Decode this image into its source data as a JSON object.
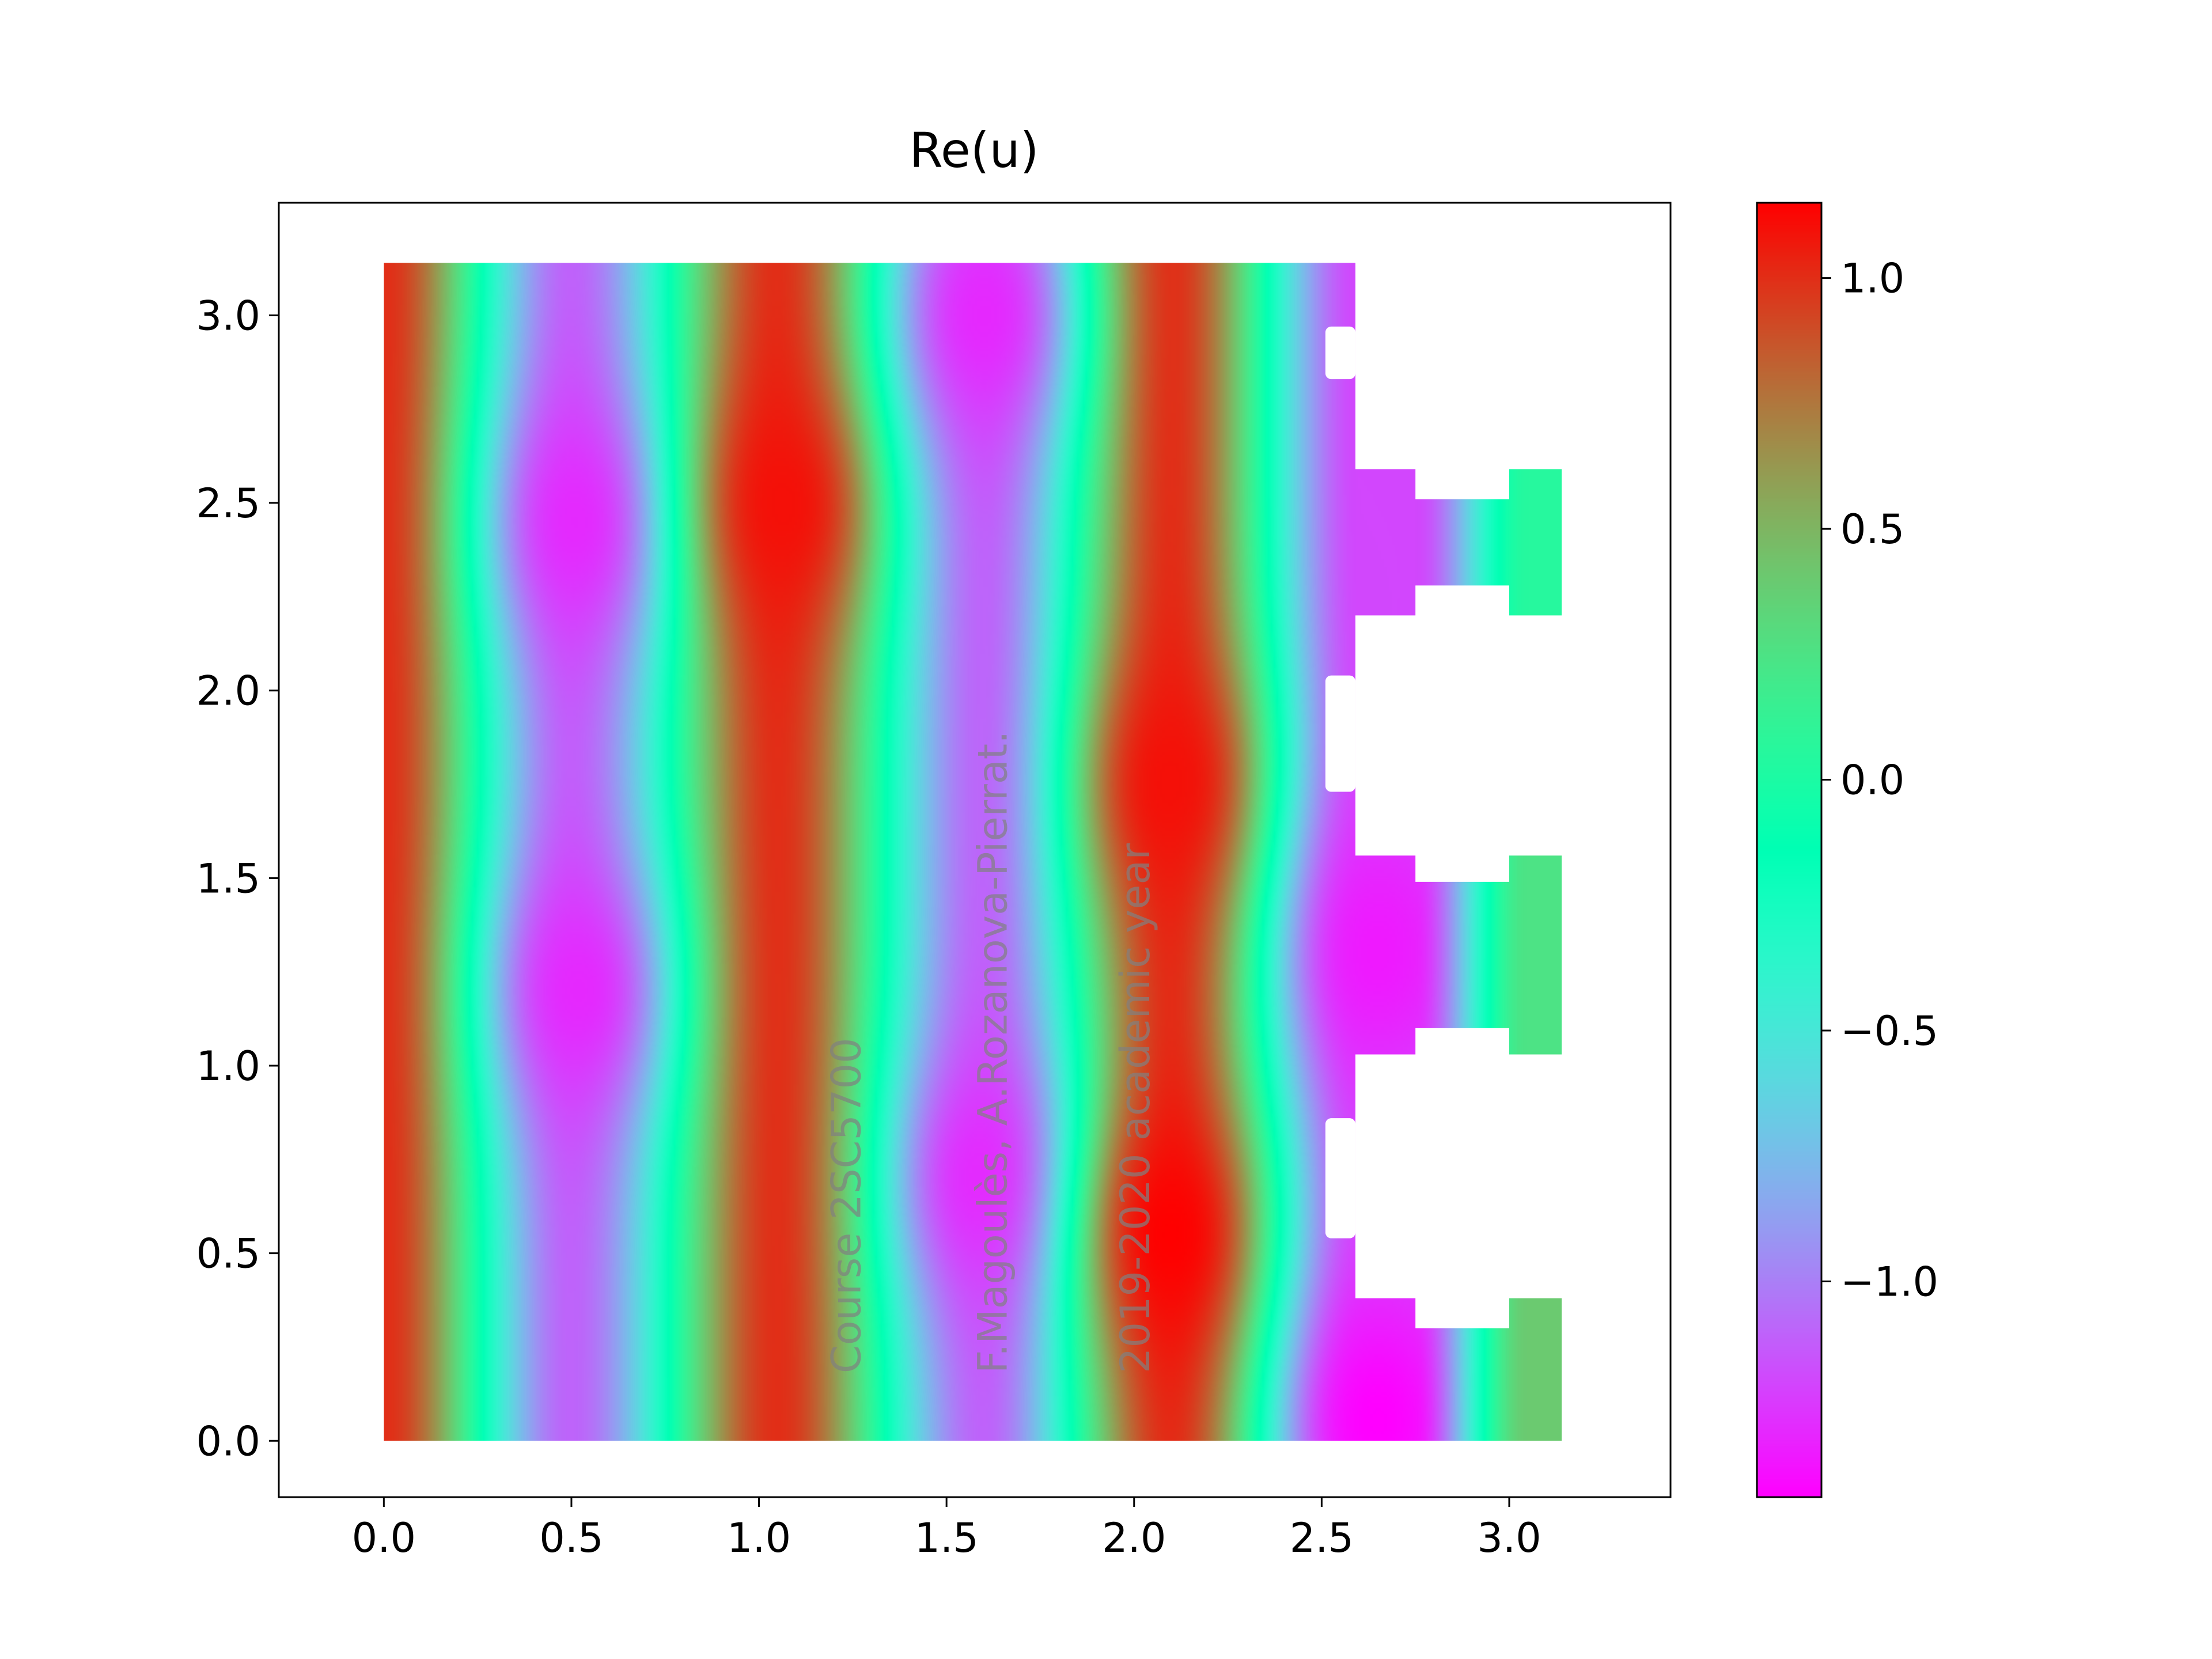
{
  "chart_data": {
    "type": "heatmap",
    "title": "Re(u)",
    "xlabel": "",
    "ylabel": "",
    "xlim": [
      -0.28,
      3.43
    ],
    "ylim": [
      -0.15,
      3.3
    ],
    "xticks": [
      "0.0",
      "0.5",
      "1.0",
      "1.5",
      "2.0",
      "2.5",
      "3.0"
    ],
    "yticks": [
      "0.0",
      "0.5",
      "1.0",
      "1.5",
      "2.0",
      "2.5",
      "3.0"
    ],
    "colormap": "rainbow",
    "colorbar": {
      "min": -1.43,
      "max": 1.15,
      "ticks": [
        "−1.0",
        "−0.5",
        "0.0",
        "0.5",
        "1.0"
      ],
      "tick_values": [
        -1.0,
        -0.5,
        0.0,
        0.5,
        1.0
      ]
    },
    "domain": {
      "main_rect": {
        "x": [
          0,
          2.59
        ],
        "y": [
          0,
          3.14
        ]
      },
      "slots": [
        {
          "x": [
            2.51,
            2.59
          ],
          "y": [
            2.83,
            2.97
          ]
        },
        {
          "x": [
            2.51,
            2.59
          ],
          "y": [
            1.73,
            2.04
          ]
        },
        {
          "x": [
            2.51,
            2.59
          ],
          "y": [
            0.54,
            0.86
          ]
        }
      ],
      "connectors": [
        {
          "x": [
            2.59,
            2.75
          ],
          "y": [
            2.2,
            2.59
          ]
        },
        {
          "x": [
            2.59,
            2.75
          ],
          "y": [
            1.03,
            1.56
          ]
        },
        {
          "x": [
            2.59,
            2.75
          ],
          "y": [
            0,
            0.38
          ]
        }
      ],
      "necks": [
        {
          "x": [
            2.75,
            3.0
          ],
          "y": [
            2.28,
            2.51
          ]
        },
        {
          "x": [
            2.75,
            3.0
          ],
          "y": [
            1.1,
            1.49
          ]
        },
        {
          "x": [
            2.75,
            3.0
          ],
          "y": [
            0,
            0.3
          ]
        }
      ],
      "end_caps": [
        {
          "x": [
            3.0,
            3.14
          ],
          "y": [
            2.2,
            2.59
          ]
        },
        {
          "x": [
            3.0,
            3.14
          ],
          "y": [
            1.03,
            1.56
          ]
        },
        {
          "x": [
            3.0,
            3.14
          ],
          "y": [
            0,
            0.38
          ]
        }
      ]
    },
    "field_summary": {
      "columns": [
        {
          "x": 0.0,
          "value": 1.0
        },
        {
          "x": 0.5,
          "value": -1.1
        },
        {
          "x": 1.05,
          "value": 1.0
        },
        {
          "x": 1.6,
          "value": -1.1
        },
        {
          "x": 2.1,
          "value": 1.0
        }
      ],
      "hotspots": [
        {
          "x": 0.52,
          "y": 2.45,
          "value": -1.3
        },
        {
          "x": 0.52,
          "y": 1.2,
          "value": -1.3
        },
        {
          "x": 1.07,
          "y": 2.5,
          "value": 1.1
        },
        {
          "x": 1.6,
          "y": 0.7,
          "value": -1.3
        },
        {
          "x": 1.6,
          "y": 3.0,
          "value": -1.3
        },
        {
          "x": 2.1,
          "y": 1.75,
          "value": 1.1
        },
        {
          "x": 2.1,
          "y": 0.55,
          "value": 1.15
        },
        {
          "x": 2.65,
          "y": 1.3,
          "value": -1.35
        },
        {
          "x": 2.65,
          "y": 0.05,
          "value": -1.43
        }
      ],
      "branch_ends": [
        {
          "y": 2.4,
          "value": 0.05
        },
        {
          "y": 1.3,
          "value": 0.25
        },
        {
          "y": 0.2,
          "value": 0.4
        }
      ]
    },
    "watermark": [
      "Course 2SC5700",
      "F.Magoulès, A.Rozanova-Pierrat.",
      "2019-2020 academic year"
    ]
  }
}
